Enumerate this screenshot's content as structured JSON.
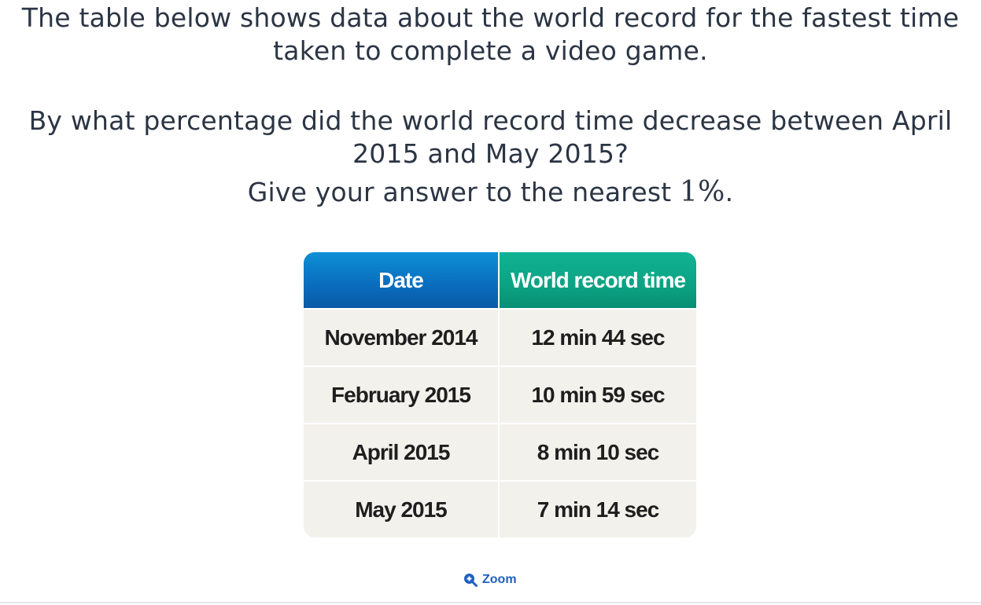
{
  "question": {
    "intro": "The table below shows data about the world record for the fastest time taken to complete a video game.",
    "ask": "By what percentage did the world record time decrease between April 2015 and May 2015?",
    "instruction_prefix": "Give your answer to the nearest ",
    "instruction_math": "1%",
    "instruction_suffix": "."
  },
  "table": {
    "headers": [
      "Date",
      "World record time"
    ],
    "header_colors": [
      "#0a6fbf",
      "#0ca283"
    ],
    "rows": [
      {
        "date": "November 2014",
        "time": "12 min 44 sec"
      },
      {
        "date": "February 2015",
        "time": "10 min 59 sec"
      },
      {
        "date": "April 2015",
        "time": "8 min 10 sec"
      },
      {
        "date": "May 2015",
        "time": "7 min 14 sec"
      }
    ]
  },
  "zoom": {
    "label": "Zoom",
    "icon": "zoom-in-icon"
  }
}
